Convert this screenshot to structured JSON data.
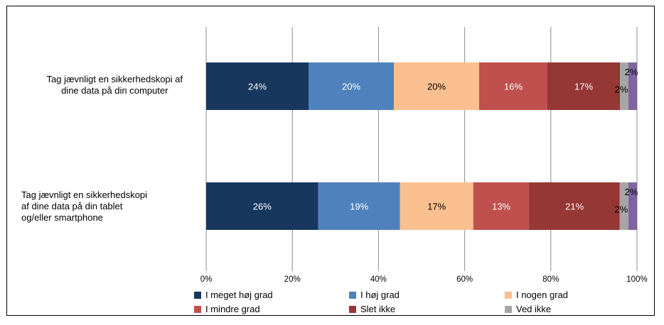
{
  "chart_data": {
    "type": "bar",
    "orientation": "horizontal",
    "stacked": "percent",
    "categories": [
      "Tag jævnligt en sikkerhedskopi  af\ndine data på din computer",
      "Tag jævnligt en sikkerhedskopi\naf dine data på din tablet\nog/eller smartphone"
    ],
    "series": [
      {
        "name": "I meget høj grad",
        "values": [
          24,
          26
        ],
        "color": "#17375e"
      },
      {
        "name": "I høj grad",
        "values": [
          20,
          19
        ],
        "color": "#4f81bd"
      },
      {
        "name": "I nogen grad",
        "values": [
          20,
          17
        ],
        "color": "#fac090"
      },
      {
        "name": "I mindre grad",
        "values": [
          16,
          13
        ],
        "color": "#c0504d"
      },
      {
        "name": "Slet ikke",
        "values": [
          17,
          21
        ],
        "color": "#953735"
      },
      {
        "name": "Ved ikke",
        "values": [
          2,
          2
        ],
        "color": "#a6a6a6"
      },
      {
        "name": "",
        "values": [
          2,
          2
        ],
        "color": "#8064a2"
      }
    ],
    "data_labels": [
      [
        "24%",
        "20%",
        "20%",
        "16%",
        "17%",
        "2%",
        "2%"
      ],
      [
        "26%",
        "19%",
        "17%",
        "13%",
        "21%",
        "2%",
        "2%"
      ]
    ],
    "x_ticks": [
      "0%",
      "20%",
      "40%",
      "60%",
      "80%",
      "100%"
    ],
    "xlim": [
      0,
      100
    ],
    "grid": true,
    "legend_position": "bottom",
    "title": "",
    "xlabel": "",
    "ylabel": ""
  }
}
